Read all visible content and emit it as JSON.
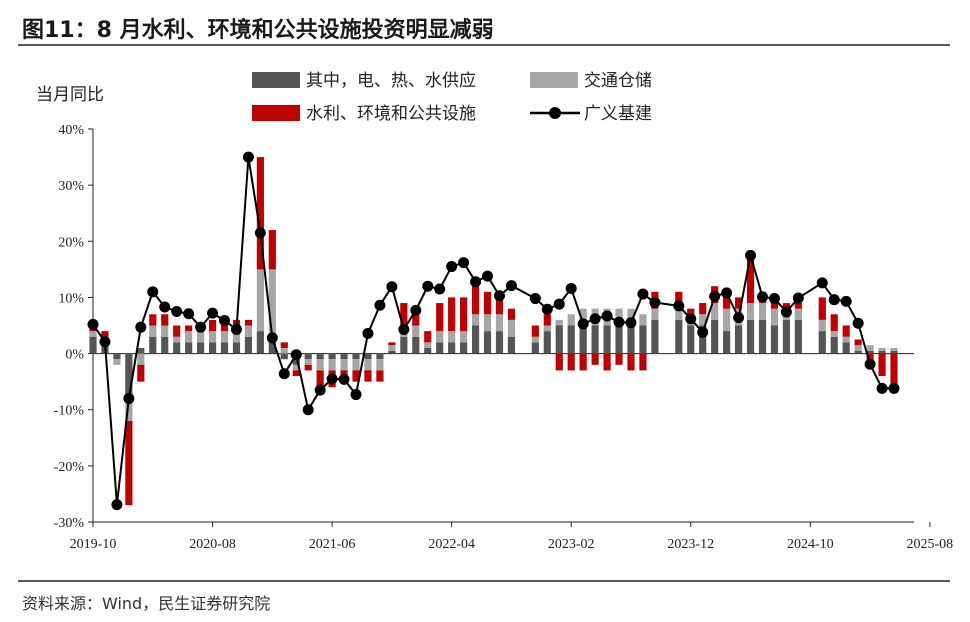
{
  "header": {
    "title": "图11：8 月水利、环境和公共设施投资明显减弱"
  },
  "footer": {
    "source": "资料来源：Wind，民生证券研究院"
  },
  "chart_data": {
    "type": "bar",
    "stacked": true,
    "ylabel": "当月同比",
    "ylim": [
      -30,
      40
    ],
    "yticks": [
      "40%",
      "30%",
      "20%",
      "10%",
      "0%",
      "-10%",
      "-20%",
      "-30%"
    ],
    "ytick_values": [
      40,
      30,
      20,
      10,
      0,
      -10,
      -20,
      -30
    ],
    "xtick_labels": [
      "2019-10",
      "2020-08",
      "2021-06",
      "2022-04",
      "2023-02",
      "2023-12",
      "2024-10",
      "2025-08"
    ],
    "xtick_index": [
      0,
      10,
      20,
      30,
      40,
      50,
      60,
      70
    ],
    "categories": [
      "2019-10",
      "2019-11",
      "2019-12",
      "2020-01",
      "2020-03",
      "2020-04",
      "2020-05",
      "2020-06",
      "2020-07",
      "2020-08",
      "2020-09",
      "2020-10",
      "2020-11",
      "2020-12",
      "2021-01",
      "2021-03",
      "2021-04",
      "2021-05",
      "2021-06",
      "2021-07",
      "2021-08",
      "2021-09",
      "2021-10",
      "2021-11",
      "2021-12",
      "2022-01",
      "2022-03",
      "2022-04",
      "2022-05",
      "2022-06",
      "2022-07",
      "2022-08",
      "2022-09",
      "2022-10",
      "2022-11",
      "2022-12",
      "2023-01",
      "2023-03",
      "2023-04",
      "2023-05",
      "2023-06",
      "2023-07",
      "2023-08",
      "2023-09",
      "2023-10",
      "2023-11",
      "2023-12",
      "2024-01",
      "2024-03",
      "2024-04",
      "2024-05",
      "2024-06",
      "2024-07",
      "2024-08",
      "2024-09",
      "2024-10",
      "2024-11",
      "2024-12",
      "2025-01",
      "2025-03",
      "2025-04",
      "2025-05",
      "2025-06",
      "2025-07",
      "2025-08"
    ],
    "x_positions": [
      0,
      1,
      2,
      3,
      4,
      5,
      6,
      7,
      8,
      9,
      10,
      11,
      12,
      13,
      14,
      15,
      16,
      17,
      18,
      19,
      20,
      21,
      22,
      23,
      24,
      25,
      26,
      27,
      28,
      29,
      30,
      31,
      32,
      33,
      34,
      35,
      37,
      38,
      39,
      40,
      41,
      42,
      43,
      44,
      45,
      46,
      47,
      49,
      50,
      51,
      52,
      53,
      54,
      55,
      56,
      57,
      58,
      59,
      61,
      62,
      63,
      64,
      65,
      66,
      67
    ],
    "series": [
      {
        "name": "其中，电、热、水供应",
        "color": "#555555",
        "values": [
          3,
          2,
          -1,
          -8,
          1,
          3,
          3,
          2,
          2,
          2,
          2,
          2,
          2,
          3,
          4,
          3,
          -1,
          -2,
          -1,
          -1,
          -1,
          -1,
          -1,
          -1,
          -1,
          0.5,
          3,
          3,
          1,
          2,
          2,
          2,
          5,
          4,
          4,
          3,
          2,
          4,
          5,
          5,
          6,
          5,
          5,
          5,
          6,
          5,
          6,
          6,
          5,
          5,
          6,
          4,
          5,
          6,
          6,
          5,
          6,
          6,
          4,
          3,
          2,
          0.5,
          0.5,
          0.5,
          0.5
        ]
      },
      {
        "name": "交通仓储",
        "color": "#a6a6a6",
        "values": [
          1,
          1,
          -1,
          -4,
          -2,
          2,
          2,
          1,
          2,
          2,
          2,
          2,
          2,
          2,
          11,
          12,
          1,
          -1,
          -1,
          -2,
          -2,
          -2,
          -2,
          -2,
          -2,
          1,
          2,
          2,
          1,
          2,
          2,
          2,
          2,
          3,
          3,
          3,
          1,
          1,
          1,
          2,
          2,
          3,
          3,
          3,
          2,
          2,
          2,
          3,
          2,
          2,
          3,
          4,
          3,
          3,
          3,
          3,
          2,
          2,
          2,
          1,
          1,
          1,
          1,
          0.5,
          0.5
        ]
      },
      {
        "name": "水利、环境和公共设施",
        "color": "#c00000",
        "values": [
          1,
          1,
          0,
          -15,
          -3,
          2,
          2,
          2,
          1,
          1,
          2,
          2,
          2,
          1,
          20,
          7,
          1,
          -1,
          -1,
          -4,
          -3,
          -2,
          -2,
          -2,
          -2,
          0.5,
          4,
          3,
          2,
          5,
          6,
          6,
          5,
          4,
          4,
          2,
          2,
          2,
          -3,
          -3,
          -3,
          -2,
          -3,
          -2,
          -3,
          -3,
          3,
          2,
          1,
          2,
          3,
          2,
          2,
          8,
          2,
          2,
          1,
          1,
          4,
          3,
          2,
          1,
          -2,
          -4,
          -7
        ]
      },
      {
        "name": "广义基建",
        "color": "#000000",
        "type": "line",
        "values": [
          5.2,
          2.1,
          -26.9,
          -8,
          4.7,
          11,
          8.3,
          7.5,
          7.1,
          4.7,
          7.2,
          5.9,
          4.3,
          35,
          21.5,
          2.8,
          -3.6,
          -0.2,
          -10,
          -6.5,
          -4.5,
          -4.6,
          -7.3,
          3.6,
          8.6,
          11.9,
          4.3,
          7.7,
          12,
          11.5,
          15.5,
          16.2,
          12.8,
          13.8,
          10.3,
          12.1,
          9.8,
          7.9,
          8.8,
          11.6,
          5.3,
          6.2,
          6.7,
          5.6,
          5.5,
          10.6,
          9.1,
          8.5,
          6.2,
          3.8,
          10.2,
          10.8,
          6.4,
          17.5,
          10.1,
          9.8,
          7.4,
          9.9,
          12.6,
          9.6,
          9.3,
          5.4,
          -1.9,
          -6.2,
          -6.2
        ]
      }
    ],
    "legend": {
      "placement": "top",
      "columns": 2
    },
    "grid": false
  }
}
